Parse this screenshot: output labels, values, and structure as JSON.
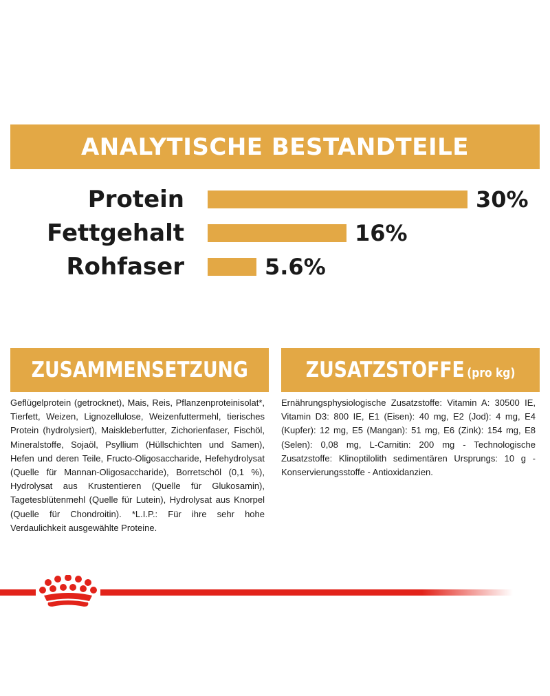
{
  "colors": {
    "accent_gold": "#E3A845",
    "brand_red": "#E2231A",
    "text": "#1a1a1a"
  },
  "title": "ANALYTISCHE BESTANDTEILE",
  "chart_data": {
    "type": "bar",
    "orientation": "horizontal",
    "categories": [
      "Protein",
      "Fettgehalt",
      "Rohfaser"
    ],
    "values": [
      30,
      16,
      5.6
    ],
    "value_labels": [
      "30%",
      "16%",
      "5.6%"
    ],
    "unit": "%",
    "title": "ANALYTISCHE BESTANDTEILE",
    "xlabel": "",
    "ylabel": "",
    "xlim": [
      0,
      30
    ],
    "grid": false
  },
  "composition": {
    "title": "ZUSAMMENSETZUNG",
    "text": "Geflügelprotein (getrocknet), Mais, Reis, Pflanzenproteinisolat*, Tierfett, Weizen, Lignozellulose, Weizenfuttermehl, tierisches Protein (hydrolysiert), Maiskleberfutter, Zichorienfaser, Fischöl, Mineralstoffe, Sojaöl, Psyllium (Hüllschichten und Samen), Hefen und deren Teile, Fructo-Oligosaccharide, Hefehydrolysat (Quelle für Mannan-Oligosaccharide), Borretschöl (0,1 %), Hydrolysat aus Krustentieren (Quelle für Glukosamin), Tagetesblütenmehl (Quelle für Lutein), Hydrolysat aus Knorpel (Quelle für Chondroitin). *L.I.P.: Für ihre sehr hohe Verdaulichkeit ausgewählte Proteine."
  },
  "additives": {
    "title": "ZUSATZSTOFFE",
    "subtitle": "(pro kg)",
    "text": "Ernährungsphysiologische Zusatzstoffe: Vitamin A: 30500 IE, Vitamin D3: 800 IE, E1 (Eisen): 40 mg, E2 (Jod): 4 mg, E4 (Kupfer): 12 mg, E5 (Mangan): 51 mg, E6 (Zink): 154 mg, E8 (Selen): 0,08 mg, L-Carnitin: 200 mg - Technologische Zusatzstoffe: Klinoptilolith sedimentären Ursprungs: 10 g - Konservierungsstoffe - Antioxidanzien."
  },
  "footer": {
    "logo_icon": "crown-icon"
  }
}
